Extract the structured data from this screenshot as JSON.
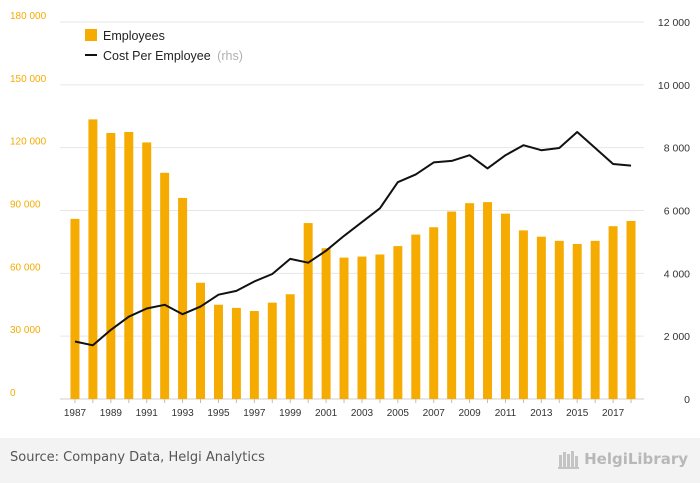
{
  "chart_data": {
    "type": "bar+line",
    "categories": [
      1987,
      1988,
      1989,
      1990,
      1991,
      1992,
      1993,
      1994,
      1995,
      1996,
      1997,
      1998,
      1999,
      2000,
      2001,
      2002,
      2003,
      2004,
      2005,
      2006,
      2007,
      2008,
      2009,
      2010,
      2011,
      2012,
      2013,
      2014,
      2015,
      2016,
      2017,
      2018
    ],
    "x_tick_labels": [
      "1987",
      "1989",
      "1991",
      "1993",
      "1995",
      "1997",
      "1999",
      "2001",
      "2003",
      "2005",
      "2007",
      "2009",
      "2011",
      "2013",
      "2015",
      "2017"
    ],
    "series": [
      {
        "name": "Employees",
        "type": "bar",
        "axis": "left",
        "color": "#f5ab00",
        "values": [
          86000,
          133500,
          127000,
          127500,
          122500,
          108000,
          96000,
          55500,
          45000,
          43500,
          42000,
          46000,
          50000,
          84000,
          72000,
          67500,
          68000,
          69000,
          73000,
          78500,
          82000,
          89500,
          93500,
          94000,
          88500,
          80500,
          77500,
          75500,
          74000,
          75500,
          82500,
          85000
        ]
      },
      {
        "name": "Cost Per Employee",
        "legend_suffix": "(rhs)",
        "type": "line",
        "axis": "right",
        "color": "#111111",
        "values": [
          1830,
          1710,
          2200,
          2620,
          2880,
          3000,
          2700,
          2940,
          3320,
          3440,
          3740,
          3980,
          4460,
          4340,
          4720,
          5190,
          5630,
          6070,
          6900,
          7150,
          7530,
          7580,
          7760,
          7340,
          7760,
          8080,
          7920,
          7990,
          8500,
          7990,
          7480,
          7430
        ]
      }
    ],
    "y_left": {
      "min": 0,
      "max": 180000,
      "ticks": [
        "0",
        "30 000",
        "60 000",
        "90 000",
        "120 000",
        "150 000",
        "180 000"
      ]
    },
    "y_right": {
      "min": 0,
      "max": 12000,
      "ticks": [
        "0",
        "2 000",
        "4 000",
        "6 000",
        "8 000",
        "10 000",
        "12 000"
      ]
    },
    "legend_position": "top-left",
    "grid": true,
    "title": "",
    "xlabel": "",
    "ylabel": ""
  },
  "legend": {
    "employees": "Employees",
    "cost": "Cost Per Employee",
    "cost_suffix": "(rhs)"
  },
  "footer": {
    "source": "Source: Company Data, Helgi Analytics",
    "brand": "HelgiLibrary"
  },
  "colors": {
    "bar": "#f5ab00",
    "line": "#111111",
    "left_axis_text": "#f5ab00",
    "right_axis_text": "#333333",
    "grid": "#e6e6e6"
  }
}
